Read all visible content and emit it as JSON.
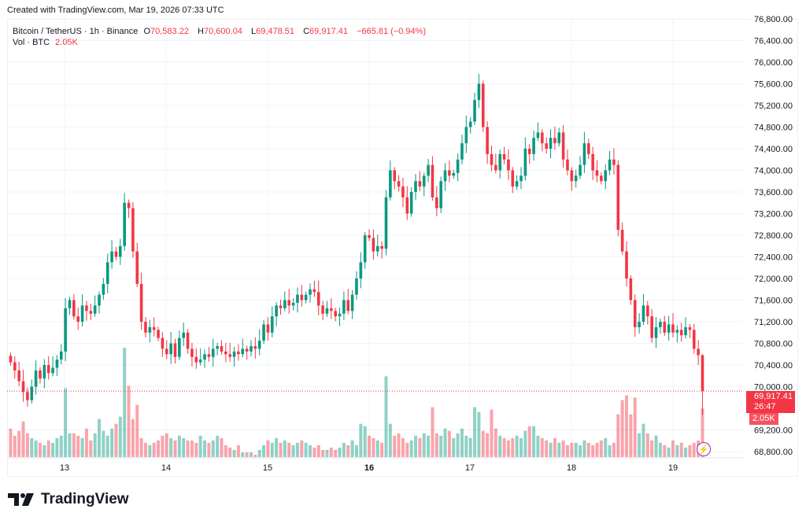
{
  "header": {
    "created": "Created with TradingView.com, Mar 19, 2026 07:33 UTC"
  },
  "legend": {
    "symbol": "Bitcoin / TetherUS · 1h · Binance",
    "o_label": "O",
    "o": "70,583.22",
    "h_label": "H",
    "h": "70,600.04",
    "l_label": "L",
    "l": "69,478.51",
    "c_label": "C",
    "c": "69,917.41",
    "change": "−665.81 (−0.94%)",
    "vol_label": "Vol · BTC",
    "vol": "2.05K"
  },
  "price_badge": {
    "price": "69,917.41",
    "countdown": "26:47",
    "volume": "2.05K"
  },
  "logo": {
    "text": "TradingView"
  },
  "icons": {
    "alert": "lightning-icon",
    "logo": "tradingview-logo-icon"
  },
  "colors": {
    "up": "#089981",
    "down": "#f23645",
    "grid": "#f0f3fa",
    "price_line": "#f23645"
  },
  "chart_data": {
    "type": "candlestick",
    "interval": "1h",
    "grid": true,
    "ylim": [
      68600,
      76900
    ],
    "y_ticks": [
      68800,
      69200,
      70000,
      70400,
      70800,
      71200,
      71600,
      72000,
      72400,
      72800,
      73200,
      73600,
      74000,
      74400,
      74800,
      75200,
      75600,
      76000,
      76400,
      76800
    ],
    "y_tick_labels": [
      "68,800.00",
      "69,200.00",
      "70,000.00",
      "70,400.00",
      "70,800.00",
      "71,200.00",
      "71,600.00",
      "72,000.00",
      "72,400.00",
      "72,800.00",
      "73,200.00",
      "73,600.00",
      "74,000.00",
      "74,400.00",
      "74,800.00",
      "75,200.00",
      "75,600.00",
      "76,000.00",
      "76,400.00",
      "76,800.00"
    ],
    "x_ticks": [
      {
        "label": "13",
        "bold": false
      },
      {
        "label": "14",
        "bold": false
      },
      {
        "label": "15",
        "bold": false
      },
      {
        "label": "16",
        "bold": true
      },
      {
        "label": "17",
        "bold": false
      },
      {
        "label": "18",
        "bold": false
      },
      {
        "label": "19",
        "bold": false
      }
    ],
    "first_candle": "Mar 12 11:00",
    "last_candle": "Mar 19 07:00",
    "last_ohlc": [
      70583.22,
      70600.04,
      69478.51,
      69917.41
    ],
    "closes": [
      70450,
      70300,
      70100,
      69900,
      69750,
      70000,
      70300,
      70150,
      70400,
      70250,
      70350,
      70500,
      70650,
      71450,
      71600,
      71300,
      71200,
      71500,
      71400,
      71350,
      71500,
      71700,
      71900,
      72300,
      72500,
      72400,
      72600,
      73400,
      73300,
      72500,
      71900,
      71200,
      71000,
      71100,
      71050,
      70900,
      70700,
      70600,
      70800,
      70550,
      70900,
      71000,
      70700,
      70550,
      70450,
      70500,
      70600,
      70550,
      70700,
      70750,
      70650,
      70600,
      70550,
      70650,
      70600,
      70700,
      70650,
      70750,
      70700,
      70850,
      71150,
      71000,
      71300,
      71500,
      71450,
      71600,
      71500,
      71550,
      71700,
      71600,
      71700,
      71800,
      71750,
      71500,
      71350,
      71450,
      71400,
      71300,
      71350,
      71600,
      71400,
      71700,
      72000,
      72300,
      72800,
      72750,
      72500,
      72600,
      72550,
      73500,
      74000,
      73800,
      73700,
      73500,
      73200,
      73600,
      73800,
      73700,
      73900,
      74100,
      73500,
      73300,
      73800,
      74000,
      73900,
      73950,
      74200,
      74500,
      74800,
      74900,
      75300,
      75600,
      74800,
      74300,
      74100,
      74000,
      74300,
      74200,
      74000,
      73700,
      73800,
      73900,
      74400,
      74300,
      74600,
      74700,
      74500,
      74400,
      74600,
      74500,
      74700,
      74200,
      74000,
      73800,
      73900,
      74100,
      74500,
      74300,
      74000,
      73900,
      73800,
      74000,
      74200,
      74100,
      72900,
      72500,
      72000,
      71600,
      71100,
      71200,
      71500,
      71300,
      70900,
      71100,
      71200,
      71000,
      71150,
      71000,
      71050,
      70950,
      71100,
      71050,
      70700,
      70583.22,
      69917.41
    ],
    "volumes_k": [
      1.2,
      0.9,
      1.1,
      1.5,
      1.0,
      0.8,
      0.7,
      0.6,
      0.5,
      0.7,
      0.6,
      0.8,
      0.9,
      2.9,
      1.0,
      1.0,
      0.9,
      0.8,
      1.2,
      0.7,
      1.0,
      1.6,
      1.1,
      0.9,
      1.2,
      1.4,
      1.7,
      4.6,
      3.0,
      1.6,
      2.2,
      0.8,
      0.6,
      0.5,
      0.6,
      0.7,
      0.9,
      1.0,
      0.8,
      0.7,
      0.9,
      0.8,
      0.7,
      0.7,
      0.6,
      0.9,
      0.7,
      0.6,
      0.7,
      0.9,
      0.8,
      0.5,
      0.4,
      0.3,
      0.5,
      0.2,
      0.2,
      0.2,
      0.1,
      0.3,
      0.5,
      0.7,
      0.6,
      0.8,
      0.6,
      0.7,
      0.6,
      0.5,
      0.6,
      0.7,
      0.6,
      0.5,
      0.4,
      0.5,
      0.3,
      0.3,
      0.4,
      0.3,
      0.4,
      0.6,
      0.5,
      0.7,
      0.5,
      1.4,
      1.3,
      0.9,
      0.8,
      0.7,
      0.6,
      3.4,
      1.4,
      0.9,
      1.0,
      0.8,
      0.6,
      0.7,
      0.9,
      0.8,
      1.0,
      0.9,
      2.1,
      1.0,
      0.9,
      1.2,
      1.1,
      0.8,
      1.0,
      1.2,
      0.9,
      0.8,
      2.1,
      1.9,
      1.1,
      1.0,
      2.0,
      1.2,
      0.9,
      0.8,
      0.7,
      0.8,
      0.9,
      0.8,
      1.1,
      1.3,
      1.3,
      0.9,
      0.8,
      0.7,
      0.6,
      0.8,
      0.6,
      0.7,
      0.5,
      0.6,
      0.6,
      0.5,
      0.7,
      0.6,
      0.5,
      0.6,
      0.7,
      0.8,
      0.5,
      0.6,
      1.8,
      2.4,
      2.6,
      1.8,
      2.5,
      1.0,
      1.4,
      1.0,
      0.7,
      0.9,
      0.6,
      0.5,
      0.4,
      0.7,
      0.5,
      0.6,
      0.4,
      0.5,
      0.6,
      0.7,
      2.05
    ]
  }
}
